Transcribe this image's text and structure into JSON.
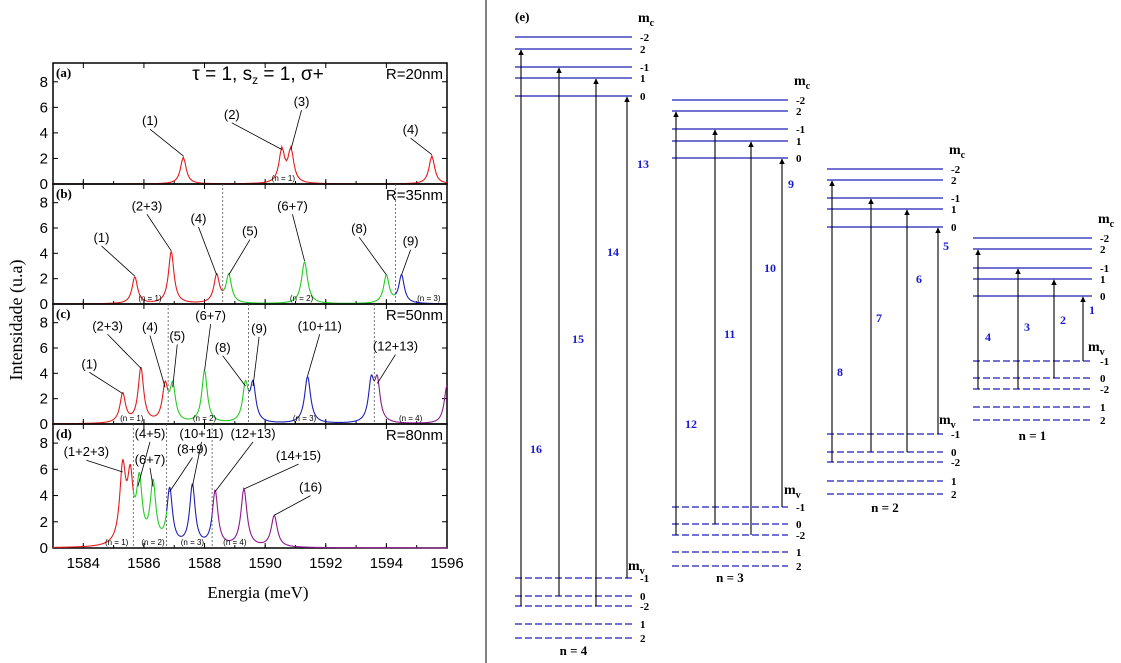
{
  "title": "τ = 1, s_z = 1, σ+",
  "chart_data": {
    "type": "line",
    "xlabel": "Energia (meV)",
    "ylabel": "Intensidade (u.a)",
    "xlim": [
      1583,
      1596
    ],
    "ylim": [
      0,
      9
    ],
    "xticks": [
      1584,
      1586,
      1588,
      1590,
      1592,
      1594,
      1596
    ],
    "yticks": [
      0,
      2,
      4,
      6,
      8
    ],
    "colors": {
      "n1": "#e41a1c",
      "n2": "#22cc22",
      "n3": "#1f1fb4",
      "n4": "#8b1a8b"
    },
    "panels": [
      {
        "label": "(a)",
        "radius": "R=20nm",
        "peaks": [
          {
            "x": 1587.3,
            "h": 2.1,
            "w": 0.11,
            "color": "n1"
          },
          {
            "x": 1590.55,
            "h": 2.6,
            "w": 0.11,
            "color": "n1"
          },
          {
            "x": 1590.85,
            "h": 2.6,
            "w": 0.11,
            "color": "n1"
          },
          {
            "x": 1595.5,
            "h": 2.2,
            "w": 0.11,
            "color": "n1"
          }
        ],
        "dividers": [],
        "annotations": [
          {
            "text": "(1)",
            "tx": 1586.2,
            "ty": 4.6,
            "px": 1587.3,
            "py": 2.2
          },
          {
            "text": "(2)",
            "tx": 1588.9,
            "ty": 5.1,
            "px": 1590.55,
            "py": 2.7
          },
          {
            "text": "(3)",
            "tx": 1591.2,
            "ty": 6.1,
            "px": 1590.85,
            "py": 2.7
          },
          {
            "text": "(4)",
            "tx": 1594.8,
            "ty": 3.9,
            "px": 1595.5,
            "py": 2.3
          }
        ],
        "nlabels": [
          {
            "text": "(n = 1)",
            "x": 1590.6
          }
        ]
      },
      {
        "label": "(b)",
        "radius": "R=35nm",
        "peaks": [
          {
            "x": 1585.7,
            "h": 2.1,
            "w": 0.11,
            "color": "n1"
          },
          {
            "x": 1586.9,
            "h": 4.1,
            "w": 0.11,
            "color": "n1"
          },
          {
            "x": 1588.4,
            "h": 2.2,
            "w": 0.11,
            "color": "n1"
          },
          {
            "x": 1588.8,
            "h": 2.2,
            "w": 0.11,
            "color": "n2"
          },
          {
            "x": 1591.3,
            "h": 3.3,
            "w": 0.12,
            "color": "n2"
          },
          {
            "x": 1594.0,
            "h": 2.2,
            "w": 0.11,
            "color": "n2"
          },
          {
            "x": 1594.5,
            "h": 2.2,
            "w": 0.11,
            "color": "n3"
          }
        ],
        "dividers": [
          1588.6,
          1594.3
        ],
        "annotations": [
          {
            "text": "(1)",
            "tx": 1584.6,
            "ty": 4.9,
            "px": 1585.7,
            "py": 2.2
          },
          {
            "text": "(2+3)",
            "tx": 1586.1,
            "ty": 7.4,
            "px": 1586.9,
            "py": 4.2
          },
          {
            "text": "(4)",
            "tx": 1587.8,
            "ty": 6.4,
            "px": 1588.4,
            "py": 2.3
          },
          {
            "text": "(5)",
            "tx": 1589.5,
            "ty": 5.4,
            "px": 1588.8,
            "py": 2.3
          },
          {
            "text": "(6+7)",
            "tx": 1590.9,
            "ty": 7.4,
            "px": 1591.3,
            "py": 3.4
          },
          {
            "text": "(8)",
            "tx": 1593.1,
            "ty": 5.6,
            "px": 1594.0,
            "py": 2.3
          },
          {
            "text": "(9)",
            "tx": 1594.8,
            "ty": 4.6,
            "px": 1594.5,
            "py": 2.3
          }
        ],
        "nlabels": [
          {
            "text": "(n = 1)",
            "x": 1586.2
          },
          {
            "text": "(n = 2)",
            "x": 1591.2
          },
          {
            "text": "(n = 3)",
            "x": 1595.4
          }
        ]
      },
      {
        "label": "(c)",
        "radius": "R=50nm",
        "peaks": [
          {
            "x": 1585.3,
            "h": 2.3,
            "w": 0.11,
            "color": "n1"
          },
          {
            "x": 1585.9,
            "h": 4.3,
            "w": 0.11,
            "color": "n1"
          },
          {
            "x": 1586.7,
            "h": 2.8,
            "w": 0.11,
            "color": "n1"
          },
          {
            "x": 1586.95,
            "h": 2.8,
            "w": 0.11,
            "color": "n2"
          },
          {
            "x": 1588.0,
            "h": 4.1,
            "w": 0.11,
            "color": "n2"
          },
          {
            "x": 1589.35,
            "h": 2.9,
            "w": 0.11,
            "color": "n2"
          },
          {
            "x": 1589.6,
            "h": 2.9,
            "w": 0.11,
            "color": "n3"
          },
          {
            "x": 1591.4,
            "h": 3.7,
            "w": 0.12,
            "color": "n3"
          },
          {
            "x": 1593.5,
            "h": 3.1,
            "w": 0.11,
            "color": "n3"
          },
          {
            "x": 1593.7,
            "h": 3.1,
            "w": 0.11,
            "color": "n4"
          },
          {
            "x": 1596.0,
            "h": 3.0,
            "w": 0.11,
            "color": "n4"
          }
        ],
        "dividers": [
          1586.8,
          1589.45,
          1593.6
        ],
        "annotations": [
          {
            "text": "(1)",
            "tx": 1584.2,
            "ty": 4.4,
            "px": 1585.3,
            "py": 2.4
          },
          {
            "text": "(2+3)",
            "tx": 1584.8,
            "ty": 7.4,
            "px": 1585.9,
            "py": 4.4
          },
          {
            "text": "(4)",
            "tx": 1586.2,
            "ty": 7.3,
            "px": 1586.7,
            "py": 2.9
          },
          {
            "text": "(5)",
            "tx": 1587.1,
            "ty": 6.6,
            "px": 1586.95,
            "py": 2.9
          },
          {
            "text": "(6+7)",
            "tx": 1588.2,
            "ty": 8.2,
            "px": 1588.0,
            "py": 4.2
          },
          {
            "text": "(8)",
            "tx": 1588.6,
            "ty": 5.7,
            "px": 1589.35,
            "py": 3.0
          },
          {
            "text": "(9)",
            "tx": 1589.8,
            "ty": 7.2,
            "px": 1589.6,
            "py": 3.0
          },
          {
            "text": "(10+11)",
            "tx": 1591.8,
            "ty": 7.4,
            "px": 1591.4,
            "py": 3.8
          },
          {
            "text": "(12+13)",
            "tx": 1594.3,
            "ty": 5.8,
            "px": 1593.7,
            "py": 3.2
          }
        ],
        "nlabels": [
          {
            "text": "(n = 1)",
            "x": 1585.6
          },
          {
            "text": "(n = 2)",
            "x": 1588.0
          },
          {
            "text": "(n = 3)",
            "x": 1591.3
          },
          {
            "text": "(n = 4)",
            "x": 1594.8
          }
        ]
      },
      {
        "label": "(d)",
        "radius": "R=80nm",
        "peaks": [
          {
            "x": 1585.3,
            "h": 5.7,
            "w": 0.12,
            "color": "n1"
          },
          {
            "x": 1585.55,
            "h": 4.6,
            "w": 0.11,
            "color": "n1"
          },
          {
            "x": 1585.85,
            "h": 4.6,
            "w": 0.11,
            "color": "n2"
          },
          {
            "x": 1586.3,
            "h": 4.6,
            "w": 0.11,
            "color": "n2"
          },
          {
            "x": 1586.85,
            "h": 4.2,
            "w": 0.11,
            "color": "n3"
          },
          {
            "x": 1587.6,
            "h": 4.6,
            "w": 0.11,
            "color": "n3"
          },
          {
            "x": 1588.35,
            "h": 4.2,
            "w": 0.11,
            "color": "n4"
          },
          {
            "x": 1589.3,
            "h": 4.4,
            "w": 0.12,
            "color": "n4"
          },
          {
            "x": 1590.3,
            "h": 2.4,
            "w": 0.12,
            "color": "n4"
          }
        ],
        "dividers": [
          1585.65,
          1586.75,
          1588.25
        ],
        "annotations": [
          {
            "text": "(1+2+3)",
            "tx": 1584.1,
            "ty": 7.0,
            "px": 1585.3,
            "py": 5.8
          },
          {
            "text": "(4+5)",
            "tx": 1586.2,
            "ty": 8.4,
            "px": 1585.8,
            "py": 4.7
          },
          {
            "text": "(6+7)",
            "tx": 1586.2,
            "ty": 6.4,
            "px": 1586.3,
            "py": 4.7
          },
          {
            "text": "(10+11)",
            "tx": 1587.9,
            "ty": 8.4,
            "px": 1587.6,
            "py": 4.7
          },
          {
            "text": "(8+9)",
            "tx": 1587.6,
            "ty": 7.2,
            "px": 1586.85,
            "py": 4.3
          },
          {
            "text": "(12+13)",
            "tx": 1589.6,
            "ty": 8.4,
            "px": 1588.35,
            "py": 4.3
          },
          {
            "text": "(14+15)",
            "tx": 1591.1,
            "ty": 6.7,
            "px": 1589.3,
            "py": 4.5
          },
          {
            "text": "(16)",
            "tx": 1591.5,
            "ty": 4.3,
            "px": 1590.3,
            "py": 2.5
          }
        ],
        "nlabels": [
          {
            "text": "(n = 1)",
            "x": 1585.1
          },
          {
            "text": "(n = 2)",
            "x": 1586.3
          },
          {
            "text": "(n = 3)",
            "x": 1587.6
          },
          {
            "text": "(n = 4)",
            "x": 1589.0
          }
        ]
      }
    ]
  },
  "diagram": {
    "panel_label": "(e)",
    "mc_label": "m",
    "mc_sub": "c",
    "mv_label": "m",
    "mv_sub": "v",
    "upper_labels": [
      "-2",
      "2",
      "-1",
      "1",
      "0"
    ],
    "lower_labels": [
      "-1",
      "0",
      "-2",
      "1",
      "2"
    ],
    "groups": [
      {
        "label": "n = 4",
        "transitions": [
          {
            "num": "16",
            "from": "-2",
            "to": "2"
          },
          {
            "num": "15",
            "from": "0",
            "to": "-1"
          },
          {
            "num": "14",
            "from": "-2",
            "to": "1"
          },
          {
            "num": "13",
            "from": "-1",
            "to": "0"
          }
        ]
      },
      {
        "label": "n = 3",
        "transitions": [
          {
            "num": "12",
            "from": "-2",
            "to": "2"
          },
          {
            "num": "11",
            "from": "0",
            "to": "-1"
          },
          {
            "num": "10",
            "from": "-2",
            "to": "1"
          },
          {
            "num": "9",
            "from": "-1",
            "to": "0"
          }
        ]
      },
      {
        "label": "n = 2",
        "transitions": [
          {
            "num": "8",
            "from": "-2",
            "to": "2"
          },
          {
            "num": "7",
            "from": "0",
            "to": "-1"
          },
          {
            "num": "6",
            "from": "0",
            "to": "1"
          },
          {
            "num": "5",
            "from": "-1",
            "to": "0"
          }
        ]
      },
      {
        "label": "n = 1",
        "transitions": [
          {
            "num": "4",
            "from": "-2",
            "to": "2"
          },
          {
            "num": "3",
            "from": "-2",
            "to": "-1"
          },
          {
            "num": "2",
            "from": "0",
            "to": "1"
          },
          {
            "num": "1",
            "from": "-1",
            "to": "0"
          }
        ]
      }
    ]
  }
}
